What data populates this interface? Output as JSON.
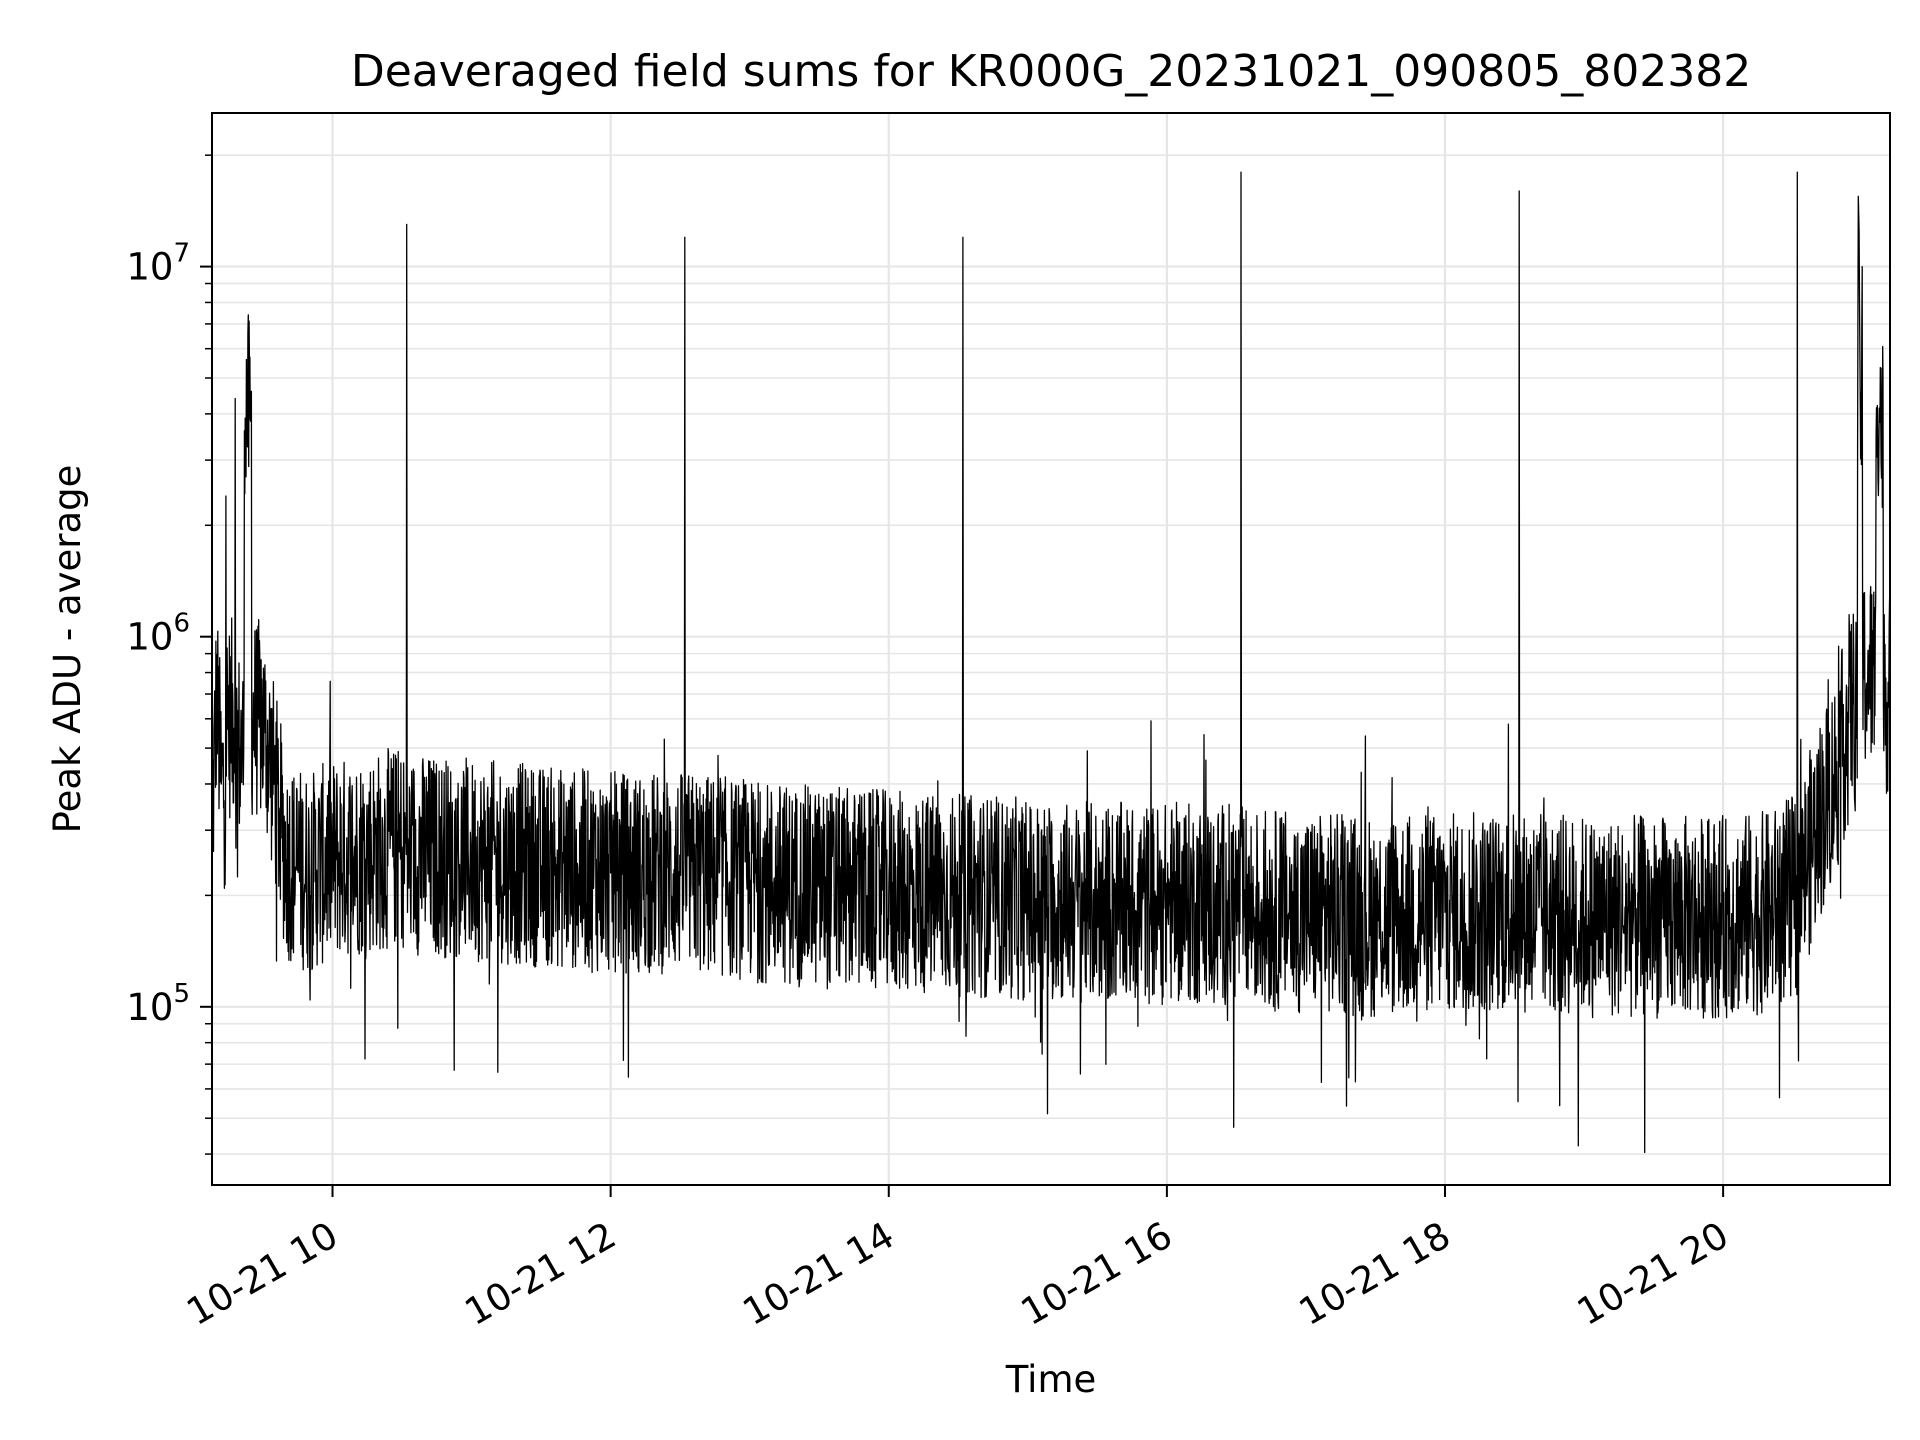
{
  "chart_data": {
    "type": "line",
    "title": "Deaveraged field sums for KR000G_20231021_090805_802382",
    "xlabel": "Time",
    "ylabel": "Peak ADU - average",
    "yscale": "log",
    "xlim": [
      "2023-10-21 09:08",
      "2023-10-21 21:12"
    ],
    "ylim": [
      33000,
      26000000
    ],
    "grid": true,
    "line_color": "#000000",
    "x_ticks": [
      {
        "value": "2023-10-21 10:00",
        "label": "10-21 10"
      },
      {
        "value": "2023-10-21 12:00",
        "label": "10-21 12"
      },
      {
        "value": "2023-10-21 14:00",
        "label": "10-21 14"
      },
      {
        "value": "2023-10-21 16:00",
        "label": "10-21 16"
      },
      {
        "value": "2023-10-21 18:00",
        "label": "10-21 18"
      },
      {
        "value": "2023-10-21 20:00",
        "label": "10-21 20"
      }
    ],
    "y_ticks": [
      {
        "value": 100000,
        "base": "10",
        "exp": "5"
      },
      {
        "value": 1000000,
        "base": "10",
        "exp": "6"
      },
      {
        "value": 10000000,
        "base": "10",
        "exp": "7"
      }
    ],
    "series": [
      {
        "x": [
          "2023-10-21 09:08",
          "2023-10-21 09:10",
          "2023-10-21 09:12",
          "2023-10-21 09:14",
          "2023-10-21 09:16",
          "2023-10-21 09:18",
          "2023-10-21 09:20",
          "2023-10-21 09:22",
          "2023-10-21 09:25",
          "2023-10-21 09:28",
          "2023-10-21 09:31",
          "2023-10-21 09:35",
          "2023-10-21 09:40",
          "2023-10-21 09:50",
          "2023-10-21 10:00",
          "2023-10-21 10:15",
          "2023-10-21 10:30",
          "2023-10-21 10:32",
          "2023-10-21 10:34",
          "2023-10-21 11:00",
          "2023-10-21 11:30",
          "2023-10-21 12:00",
          "2023-10-21 12:30",
          "2023-10-21 12:32",
          "2023-10-21 12:34",
          "2023-10-21 13:00",
          "2023-10-21 13:30",
          "2023-10-21 14:00",
          "2023-10-21 14:30",
          "2023-10-21 14:32",
          "2023-10-21 14:34",
          "2023-10-21 15:00",
          "2023-10-21 15:30",
          "2023-10-21 16:00",
          "2023-10-21 16:30",
          "2023-10-21 16:32",
          "2023-10-21 16:34",
          "2023-10-21 17:00",
          "2023-10-21 17:30",
          "2023-10-21 18:00",
          "2023-10-21 18:30",
          "2023-10-21 18:32",
          "2023-10-21 18:34",
          "2023-10-21 19:00",
          "2023-10-21 19:30",
          "2023-10-21 20:00",
          "2023-10-21 20:20",
          "2023-10-21 20:30",
          "2023-10-21 20:32",
          "2023-10-21 20:34",
          "2023-10-21 20:40",
          "2023-10-21 20:50",
          "2023-10-21 20:55",
          "2023-10-21 20:58",
          "2023-10-21 21:00",
          "2023-10-21 21:03",
          "2023-10-21 21:06",
          "2023-10-21 21:09",
          "2023-10-21 21:12"
        ],
        "y": [
          300000,
          700000,
          400000,
          2400000,
          600000,
          4400000,
          500000,
          3600000,
          4600000,
          600000,
          550000,
          400000,
          250000,
          230000,
          250000,
          260000,
          270000,
          13000000,
          260000,
          250000,
          240000,
          230000,
          230000,
          12000000,
          230000,
          220000,
          210000,
          205000,
          200000,
          12000000,
          200000,
          195000,
          190000,
          190000,
          190000,
          18000000,
          185000,
          180000,
          175000,
          180000,
          180000,
          16000000,
          180000,
          175000,
          175000,
          175000,
          180000,
          200000,
          18000000,
          220000,
          300000,
          450000,
          650000,
          3300000,
          10000000,
          800000,
          3500000,
          5000000,
          700000
        ]
      }
    ]
  }
}
